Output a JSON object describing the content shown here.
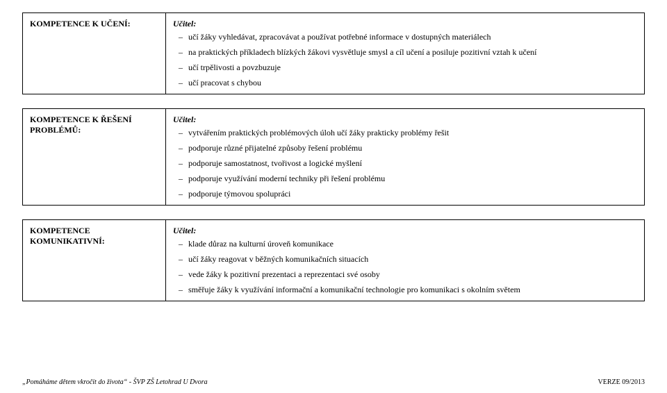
{
  "teacher_label": "Učitel:",
  "blocks": [
    {
      "title": "KOMPETENCE K UČENÍ:",
      "items": [
        "učí žáky vyhledávat, zpracovávat a používat potřebné informace v dostupných materiálech",
        "na praktických příkladech blízkých žákovi vysvětluje smysl a cíl učení a posiluje pozitivní vztah k učení",
        "učí trpělivosti a povzbuzuje",
        "učí pracovat s chybou"
      ]
    },
    {
      "title": "KOMPETENCE K ŘEŠENÍ PROBLÉMŮ:",
      "items": [
        "vytvářením praktických problémových úloh učí žáky prakticky problémy řešit",
        "podporuje různé přijatelné způsoby řešení problému",
        "podporuje samostatnost, tvořivost a logické myšlení",
        "podporuje využívání moderní techniky při řešení problému",
        "podporuje týmovou spolupráci"
      ]
    },
    {
      "title": "KOMPETENCE KOMUNIKATIVNÍ:",
      "items": [
        "klade důraz na kulturní úroveň komunikace",
        "učí žáky reagovat v běžných komunikačních situacích",
        "vede žáky k pozitivní prezentaci a reprezentaci své osoby",
        "směřuje žáky k využívání informační a komunikační technologie pro komunikaci s okolním světem"
      ]
    }
  ],
  "footer": {
    "left": "„Pomáháme dětem vkročit do života“ - ŠVP ZŠ Letohrad U Dvora",
    "right": "VERZE 09/2013"
  }
}
